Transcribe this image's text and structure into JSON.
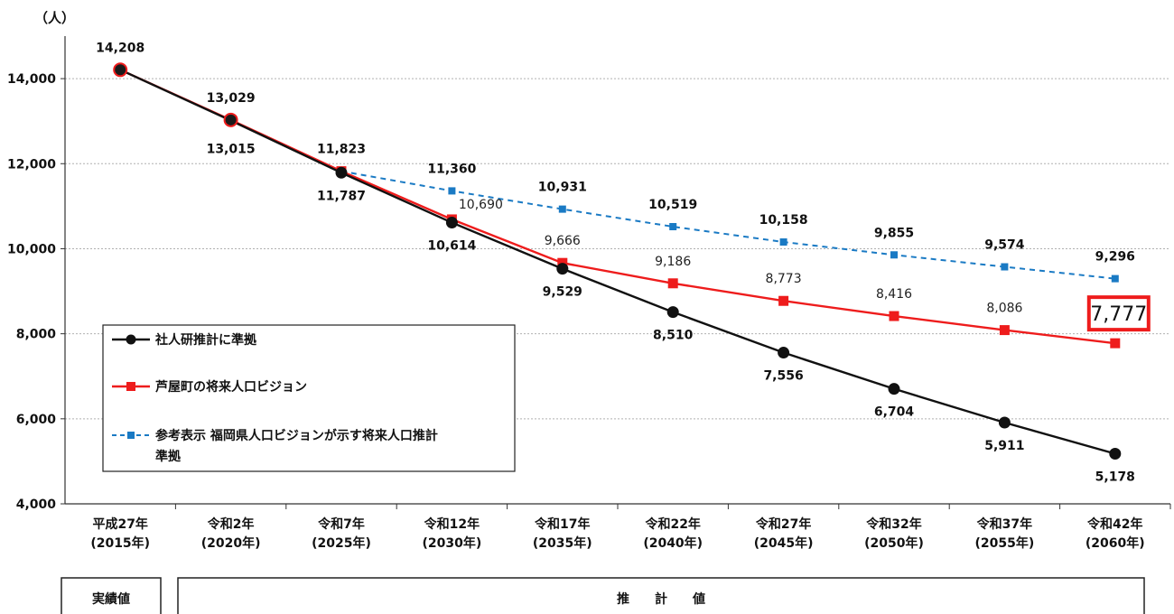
{
  "chart_data": {
    "type": "line",
    "unit": "（人）",
    "ylim": [
      4000,
      15000
    ],
    "y_ticks": [
      {
        "value": 4000,
        "label": "4,000"
      },
      {
        "value": 6000,
        "label": "6,000"
      },
      {
        "value": 8000,
        "label": "8,000"
      },
      {
        "value": 10000,
        "label": "10,000"
      },
      {
        "value": 12000,
        "label": "12,000"
      },
      {
        "value": 14000,
        "label": "14,000"
      }
    ],
    "categories": [
      [
        "平成27年",
        "(2015年)"
      ],
      [
        "令和2年",
        "(2020年)"
      ],
      [
        "令和7年",
        "(2025年)"
      ],
      [
        "令和12年",
        "(2030年)"
      ],
      [
        "令和17年",
        "(2035年)"
      ],
      [
        "令和22年",
        "(2040年)"
      ],
      [
        "令和27年",
        "(2045年)"
      ],
      [
        "令和32年",
        "(2050年)"
      ],
      [
        "令和37年",
        "(2055年)"
      ],
      [
        "令和42年",
        "(2060年)"
      ]
    ],
    "grid": true,
    "legend_position": "bottom-left",
    "series": [
      {
        "name": "社人研推計に準拠",
        "color": "#111111",
        "marker": "circle",
        "dash": "solid",
        "values": [
          14208,
          13015,
          11787,
          10614,
          9529,
          8510,
          7556,
          6704,
          5911,
          5178
        ],
        "labels": [
          "",
          "13,015",
          "11,787",
          "10,614",
          "9,529",
          "8,510",
          "7,556",
          "6,704",
          "5,911",
          "5,178"
        ]
      },
      {
        "name": "芦屋町の将来人口ビジョン",
        "color": "#ee1c1c",
        "marker": "square",
        "dash": "solid",
        "values": [
          14208,
          13029,
          11823,
          10690,
          9666,
          9186,
          8773,
          8416,
          8086,
          7777
        ],
        "labels": [
          "14,208",
          "13,029",
          "11,823",
          "10,690",
          "9,666",
          "9,186",
          "8,773",
          "8,416",
          "8,086",
          "7,777"
        ]
      },
      {
        "name_lines": [
          "参考表示  福岡県人口ビジョンが示す将来人口推計",
          "準拠"
        ],
        "color": "#1a7ac4",
        "marker": "square",
        "dash": "dashed",
        "values": [
          null,
          null,
          11823,
          11360,
          10931,
          10519,
          10158,
          9855,
          9574,
          9296
        ],
        "labels": [
          "",
          "",
          "",
          "11,360",
          "10,931",
          "10,519",
          "10,158",
          "9,855",
          "9,574",
          "9,296"
        ]
      }
    ],
    "highlight": {
      "series_index": 1,
      "point_index": 9,
      "label": "7,777",
      "border_color": "#ee1c1c"
    }
  },
  "footer": {
    "actual_label": "実績値",
    "estimate_label": "推　　計　　値"
  }
}
